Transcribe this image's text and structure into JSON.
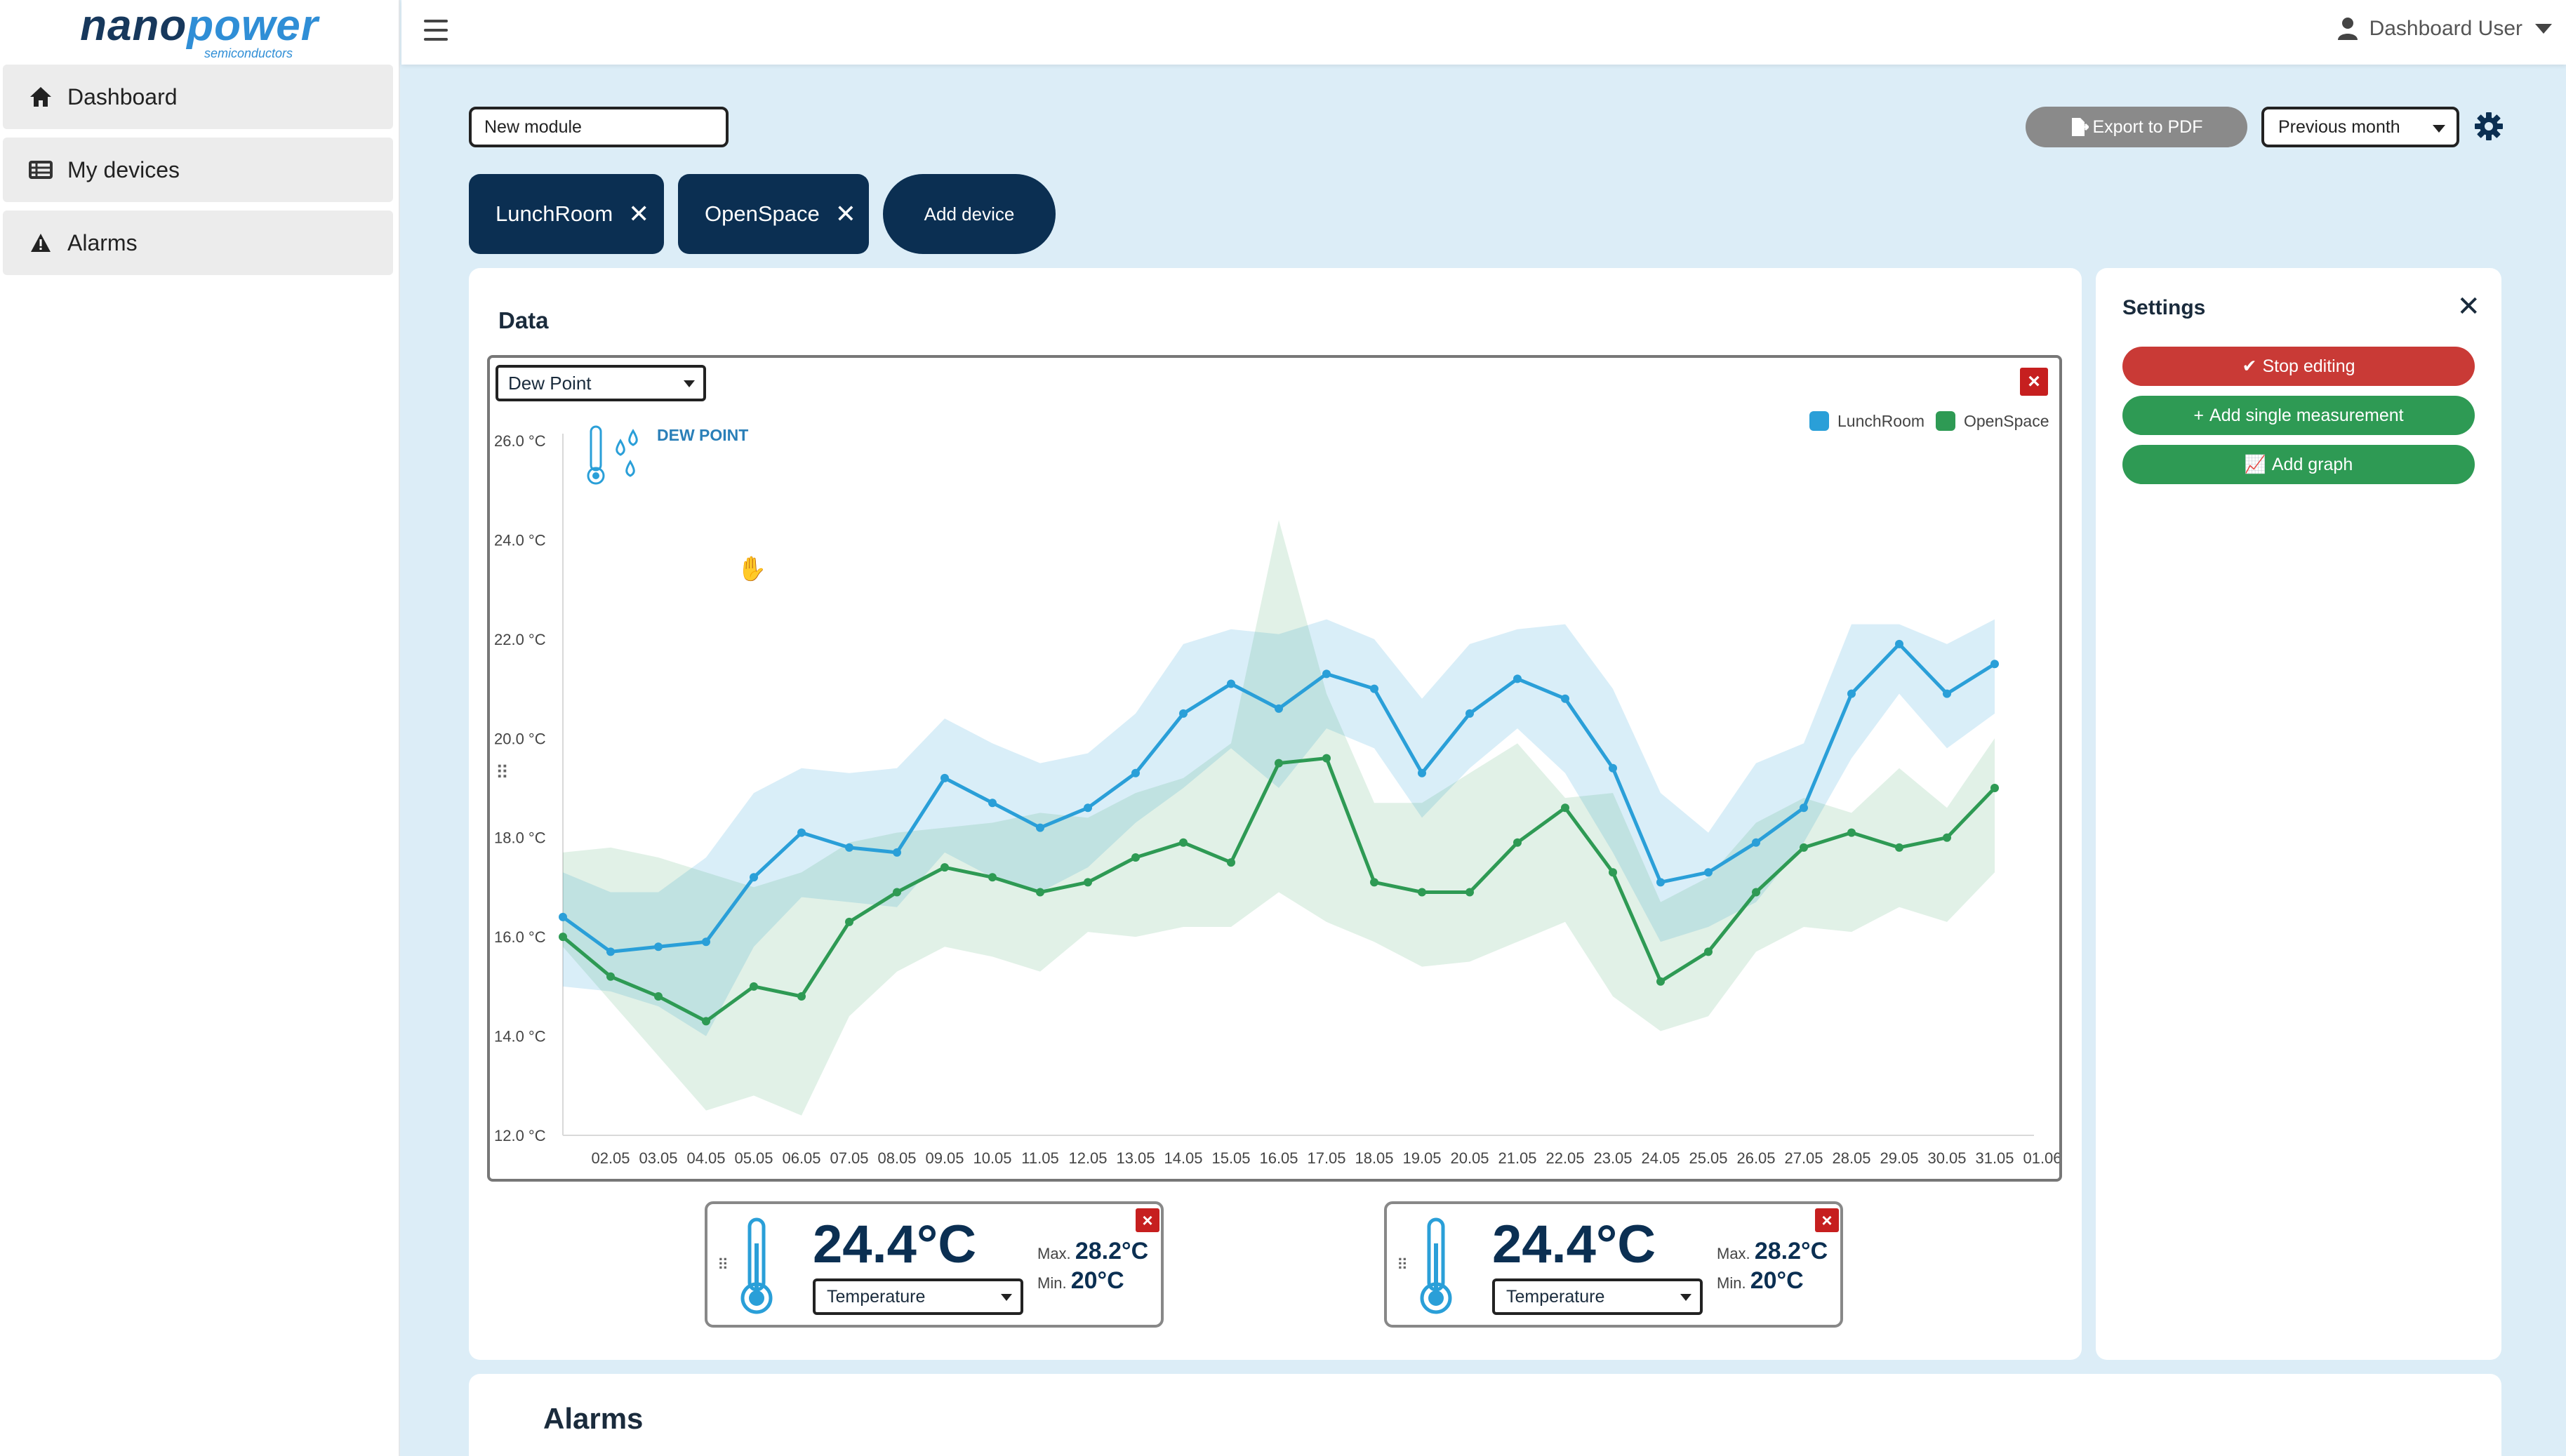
{
  "brand": {
    "logo_main_a": "nano",
    "logo_main_b": "power",
    "logo_sub": "semiconductors"
  },
  "sidebar": {
    "items": [
      {
        "label": "Dashboard",
        "icon": "home-icon"
      },
      {
        "label": "My devices",
        "icon": "devices-list-icon"
      },
      {
        "label": "Alarms",
        "icon": "warning-icon"
      }
    ]
  },
  "topbar": {
    "user_label": "Dashboard User"
  },
  "controls": {
    "module_name_value": "New module",
    "export_label": "Export to PDF",
    "period_value": "Previous month"
  },
  "devices": {
    "tabs": [
      {
        "label": "LunchRoom"
      },
      {
        "label": "OpenSpace"
      }
    ],
    "add_label": "Add device"
  },
  "data_card": {
    "title": "Data",
    "metric_select": "Dew Point",
    "chart_badge": "DEW POINT"
  },
  "chart_data": {
    "type": "line",
    "title": "",
    "xlabel": "",
    "ylabel": "",
    "ylim": [
      12,
      26
    ],
    "y_ticks": [
      "12.0 °C",
      "14.0 °C",
      "16.0 °C",
      "18.0 °C",
      "20.0 °C",
      "22.0 °C",
      "24.0 °C",
      "26.0 °C"
    ],
    "categories": [
      "02.05",
      "03.05",
      "04.05",
      "05.05",
      "06.05",
      "07.05",
      "08.05",
      "09.05",
      "10.05",
      "11.05",
      "12.05",
      "13.05",
      "14.05",
      "15.05",
      "16.05",
      "17.05",
      "18.05",
      "19.05",
      "20.05",
      "21.05",
      "22.05",
      "23.05",
      "24.05",
      "25.05",
      "26.05",
      "27.05",
      "28.05",
      "29.05",
      "30.05",
      "31.05",
      "01.06"
    ],
    "legend_position": "top-right",
    "grid": false,
    "series": [
      {
        "name": "LunchRoom",
        "color": "#2a9fd8",
        "values": [
          16.4,
          15.7,
          15.8,
          15.9,
          17.2,
          18.1,
          17.8,
          17.7,
          19.2,
          18.7,
          18.2,
          18.6,
          19.3,
          20.5,
          21.1,
          20.6,
          21.3,
          21.0,
          19.3,
          20.5,
          21.2,
          20.8,
          19.4,
          17.1,
          17.3,
          17.9,
          18.6,
          20.9,
          21.9,
          20.9,
          21.5
        ],
        "band_upper": [
          17.3,
          16.9,
          16.9,
          17.6,
          18.9,
          19.4,
          19.3,
          19.4,
          20.4,
          19.9,
          19.5,
          19.7,
          20.5,
          21.9,
          22.2,
          22.1,
          22.4,
          22.0,
          20.8,
          21.9,
          22.2,
          22.3,
          21.0,
          18.9,
          18.1,
          19.5,
          19.9,
          22.3,
          22.3,
          21.9,
          22.4
        ],
        "band_lower": [
          15.0,
          14.9,
          14.6,
          14.0,
          15.8,
          16.8,
          16.7,
          16.6,
          17.7,
          17.2,
          16.9,
          17.4,
          18.3,
          19.0,
          19.8,
          19.0,
          20.2,
          19.8,
          18.4,
          19.4,
          20.2,
          19.3,
          17.7,
          15.9,
          16.2,
          16.7,
          17.9,
          19.6,
          20.9,
          19.8,
          20.5
        ]
      },
      {
        "name": "OpenSpace",
        "color": "#2e9a54",
        "values": [
          16.0,
          15.2,
          14.8,
          14.3,
          15.0,
          14.8,
          16.3,
          16.9,
          17.4,
          17.2,
          16.9,
          17.1,
          17.6,
          17.9,
          17.5,
          19.5,
          19.6,
          17.1,
          16.9,
          16.9,
          17.9,
          18.6,
          17.3,
          15.1,
          15.7,
          16.9,
          17.8,
          18.1,
          17.8,
          18.0,
          19.0
        ],
        "band_upper": [
          17.7,
          17.8,
          17.6,
          17.3,
          17.0,
          17.3,
          17.9,
          18.1,
          18.2,
          18.3,
          18.5,
          18.4,
          18.9,
          19.2,
          19.9,
          24.4,
          20.9,
          18.7,
          18.7,
          19.3,
          19.9,
          18.8,
          18.9,
          16.7,
          17.2,
          18.3,
          18.8,
          18.5,
          19.4,
          18.6,
          20.0
        ],
        "band_lower": [
          15.8,
          14.7,
          13.6,
          12.5,
          12.8,
          12.4,
          14.4,
          15.3,
          15.8,
          15.6,
          15.3,
          16.1,
          16.0,
          16.2,
          16.2,
          16.9,
          16.3,
          15.9,
          15.4,
          15.5,
          15.9,
          16.3,
          14.8,
          14.1,
          14.4,
          15.7,
          16.2,
          16.1,
          16.6,
          16.3,
          17.3
        ]
      }
    ]
  },
  "widgets": [
    {
      "value": "24.4°C",
      "max_label": "Max.",
      "max_value": "28.2°C",
      "min_label": "Min.",
      "min_value": "20°C",
      "select": "Temperature"
    },
    {
      "value": "24.4°C",
      "max_label": "Max.",
      "max_value": "28.2°C",
      "min_label": "Min.",
      "min_value": "20°C",
      "select": "Temperature"
    }
  ],
  "settings": {
    "title": "Settings",
    "stop_editing_label": "Stop editing",
    "add_single_label": "Add single measurement",
    "add_graph_label": "Add graph",
    "colors": {
      "stop": "#c93a36",
      "add": "#2e9a54"
    }
  },
  "alarms": {
    "title": "Alarms"
  }
}
